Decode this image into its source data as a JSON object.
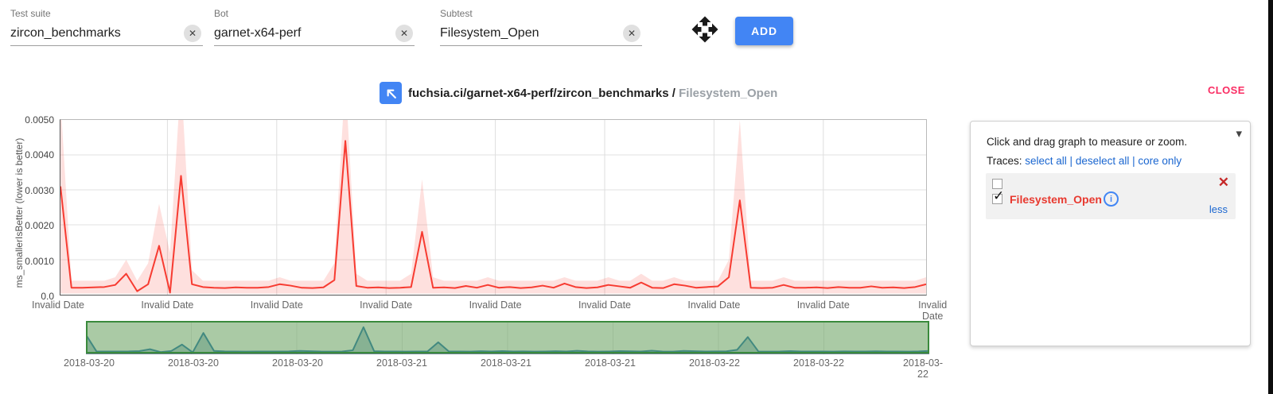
{
  "form": {
    "fields": [
      {
        "label": "Test suite",
        "value": "zircon_benchmarks"
      },
      {
        "label": "Bot",
        "value": "garnet-x64-perf"
      },
      {
        "label": "Subtest",
        "value": "Filesystem_Open"
      }
    ],
    "add_label": "ADD"
  },
  "header": {
    "title_path": "fuchsia.ci/garnet-x64-perf/zircon_benchmarks / ",
    "title_subtest": "Filesystem_Open",
    "close_label": "CLOSE"
  },
  "panel": {
    "hint": "Click and drag graph to measure or zoom.",
    "traces_label": "Traces: ",
    "links": [
      "select all",
      "deselect all",
      "core only"
    ],
    "links_separator": " | ",
    "trace_name": "Filesystem_Open",
    "less_label": "less"
  },
  "icons": {
    "clear_x": "✕",
    "remove_x": "✕",
    "check": "✓",
    "chevron_down": "▾",
    "info_i": "i"
  },
  "colors": {
    "accent_blue": "#4285f4",
    "close_pink": "#fa2d63",
    "series_red": "#f73b31",
    "band_pink": "rgba(248,60,50,0.16)",
    "trace_red": "#e8392f",
    "link_blue": "#1a66d0",
    "selector_green_border": "#3a8a3c",
    "selector_green_fill": "rgba(92,153,82,0.52)",
    "selector_line_blue": "#2678b2"
  },
  "chart_data": {
    "type": "line",
    "title": "fuchsia.ci/garnet-x64-perf/zircon_benchmarks / Filesystem_Open",
    "ylabel": "ms_smallerIsBetter (lower is better)",
    "ylim": [
      0,
      0.005
    ],
    "grid": true,
    "y_ticks": [
      "0.0050",
      "0.0040",
      "0.0030",
      "0.0020",
      "0.0010",
      "0.0"
    ],
    "x_ticks": [
      "Invalid Date",
      "Invalid Date",
      "Invalid Date",
      "Invalid Date",
      "Invalid Date",
      "Invalid Date",
      "Invalid Date",
      "Invalid Date",
      "Invalid Date"
    ],
    "series": [
      {
        "name": "Filesystem_Open",
        "color": "#f73b31",
        "band_color": "rgba(248,60,50,0.16)",
        "values": [
          0.0031,
          0.0002,
          0.0002,
          0.00021,
          0.00022,
          0.00028,
          0.0006,
          0.0001,
          0.0003,
          0.0014,
          6e-05,
          0.0034,
          0.0003,
          0.00022,
          0.0002,
          0.00019,
          0.00021,
          0.0002,
          0.0002,
          0.00022,
          0.0003,
          0.00026,
          0.0002,
          0.00019,
          0.00021,
          0.00042,
          0.0044,
          0.00025,
          0.0002,
          0.00021,
          0.00019,
          0.0002,
          0.00022,
          0.0018,
          0.0002,
          0.00021,
          0.00019,
          0.00025,
          0.0002,
          0.00028,
          0.0002,
          0.00022,
          0.00019,
          0.00021,
          0.00026,
          0.0002,
          0.00032,
          0.00022,
          0.00019,
          0.00021,
          0.00028,
          0.00024,
          0.0002,
          0.00035,
          0.0002,
          0.00019,
          0.0003,
          0.00026,
          0.0002,
          0.00022,
          0.00024,
          0.0005,
          0.0027,
          0.0002,
          0.00019,
          0.0002,
          0.00028,
          0.0002,
          0.0002,
          0.00021,
          0.00019,
          0.00022,
          0.0002,
          0.0002,
          0.00024,
          0.0002,
          0.00021,
          0.00019,
          0.00022,
          0.0003
        ],
        "band_upper": [
          0.0056,
          0.0004,
          0.0004,
          0.0004,
          0.0004,
          0.0005,
          0.001,
          0.0004,
          0.0009,
          0.0026,
          0.0012,
          0.0062,
          0.0007,
          0.0004,
          0.0004,
          0.0004,
          0.0004,
          0.0004,
          0.0004,
          0.0004,
          0.0005,
          0.0004,
          0.0004,
          0.0004,
          0.0004,
          0.0009,
          0.0062,
          0.0006,
          0.0004,
          0.0004,
          0.0004,
          0.0004,
          0.0006,
          0.0033,
          0.0005,
          0.0004,
          0.0004,
          0.0004,
          0.0004,
          0.0005,
          0.0004,
          0.0004,
          0.0004,
          0.0004,
          0.0004,
          0.0004,
          0.0005,
          0.0004,
          0.0004,
          0.0004,
          0.0005,
          0.0004,
          0.0004,
          0.0006,
          0.0004,
          0.0004,
          0.0005,
          0.0004,
          0.0004,
          0.0004,
          0.0004,
          0.001,
          0.005,
          0.0004,
          0.0004,
          0.0004,
          0.0005,
          0.0004,
          0.0004,
          0.0004,
          0.0004,
          0.0004,
          0.0004,
          0.0004,
          0.0004,
          0.0004,
          0.0004,
          0.0004,
          0.0004,
          0.0005
        ],
        "band_lower": 3e-05
      }
    ],
    "range_selector": {
      "x_ticks": [
        "2018-03-20",
        "2018-03-20",
        "2018-03-20",
        "2018-03-21",
        "2018-03-21",
        "2018-03-21",
        "2018-03-22",
        "2018-03-22",
        "2018-03-22"
      ],
      "line_color": "#2678b2",
      "area_fill": "rgba(46,114,150,0.35)"
    }
  }
}
